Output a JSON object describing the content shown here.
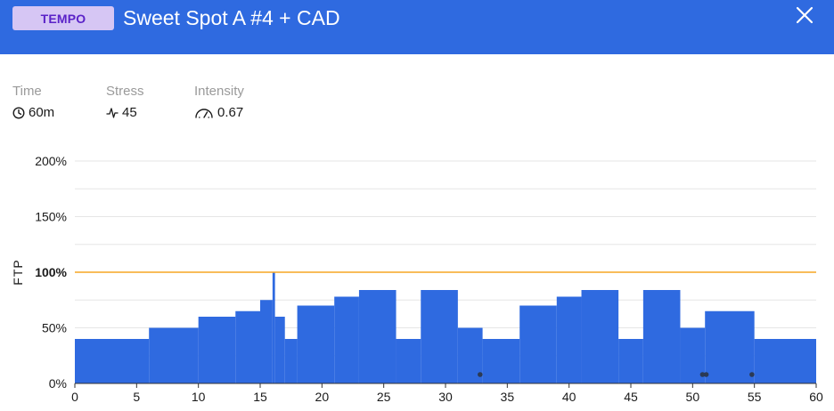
{
  "header": {
    "badge": "TEMPO",
    "title": "Sweet Spot A #4 + CAD",
    "close_icon": "close-icon"
  },
  "colors": {
    "header_bg": "#2f6ae0",
    "badge_bg": "#d6c6f4",
    "badge_text": "#5a22c8",
    "bar": "#2f6ae0",
    "ftp_line": "#f5a623",
    "marker": "#2b3a55"
  },
  "stats": [
    {
      "label": "Time",
      "value": "60m",
      "icon": "clock-icon"
    },
    {
      "label": "Stress",
      "value": "45",
      "icon": "pulse-icon"
    },
    {
      "label": "Intensity",
      "value": "0.67",
      "icon": "gauge-icon"
    }
  ],
  "chart_data": {
    "type": "area",
    "ylabel": "FTP",
    "xlim": [
      0,
      60
    ],
    "ylim": [
      0,
      200
    ],
    "x_ticks": [
      0,
      5,
      10,
      15,
      20,
      25,
      30,
      35,
      40,
      45,
      50,
      55,
      60
    ],
    "y_ticks": [
      {
        "value": 0,
        "label": "0%"
      },
      {
        "value": 50,
        "label": "50%"
      },
      {
        "value": 100,
        "label": "100%"
      },
      {
        "value": 150,
        "label": "150%"
      },
      {
        "value": 200,
        "label": "200%"
      }
    ],
    "ftp_reference": 100,
    "segments": [
      {
        "start": 0,
        "end": 6,
        "power": 40
      },
      {
        "start": 6,
        "end": 10,
        "power": 50
      },
      {
        "start": 10,
        "end": 13,
        "power": 60
      },
      {
        "start": 13,
        "end": 15,
        "power": 65
      },
      {
        "start": 15,
        "end": 16,
        "power": 75
      },
      {
        "start": 16,
        "end": 16.2,
        "power": 100
      },
      {
        "start": 16.2,
        "end": 17,
        "power": 60
      },
      {
        "start": 17,
        "end": 18,
        "power": 40
      },
      {
        "start": 18,
        "end": 21,
        "power": 70
      },
      {
        "start": 21,
        "end": 23,
        "power": 78
      },
      {
        "start": 23,
        "end": 26,
        "power": 84
      },
      {
        "start": 26,
        "end": 28,
        "power": 40
      },
      {
        "start": 28,
        "end": 31,
        "power": 84
      },
      {
        "start": 31,
        "end": 33,
        "power": 50
      },
      {
        "start": 33,
        "end": 36,
        "power": 40
      },
      {
        "start": 36,
        "end": 39,
        "power": 70
      },
      {
        "start": 39,
        "end": 41,
        "power": 78
      },
      {
        "start": 41,
        "end": 44,
        "power": 84
      },
      {
        "start": 44,
        "end": 46,
        "power": 40
      },
      {
        "start": 46,
        "end": 49,
        "power": 84
      },
      {
        "start": 49,
        "end": 51,
        "power": 50
      },
      {
        "start": 51,
        "end": 55,
        "power": 65
      },
      {
        "start": 55,
        "end": 60,
        "power": 40
      }
    ],
    "markers": [
      32.8,
      50.8,
      51.1,
      54.8
    ],
    "marker_level": 8
  }
}
